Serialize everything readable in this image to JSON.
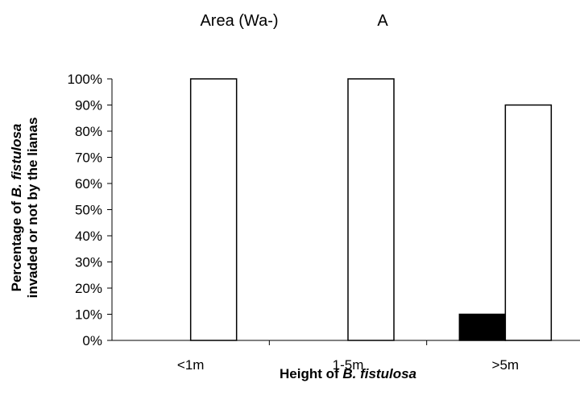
{
  "chart_data": {
    "type": "bar",
    "title_left": "Area (Wa-)",
    "title_right": "A",
    "xlabel_prefix": "Height of ",
    "xlabel_italic": "B. fistulosa",
    "ylabel_line1_prefix": "Percentage of  ",
    "ylabel_line1_italic": "B. fistulosa",
    "ylabel_line2": "invaded or not by the lianas",
    "categories": [
      "<1m",
      "1-5m",
      ">5m"
    ],
    "ylim": [
      0,
      100
    ],
    "yticks": [
      "0%",
      "10%",
      "20%",
      "30%",
      "40%",
      "50%",
      "60%",
      "70%",
      "80%",
      "90%",
      "100%"
    ],
    "series": [
      {
        "color": "#000000",
        "values": [
          0,
          0,
          10
        ]
      },
      {
        "color": "#ffffff",
        "values": [
          100,
          100,
          90
        ]
      }
    ],
    "grid": false,
    "legend": "none"
  }
}
